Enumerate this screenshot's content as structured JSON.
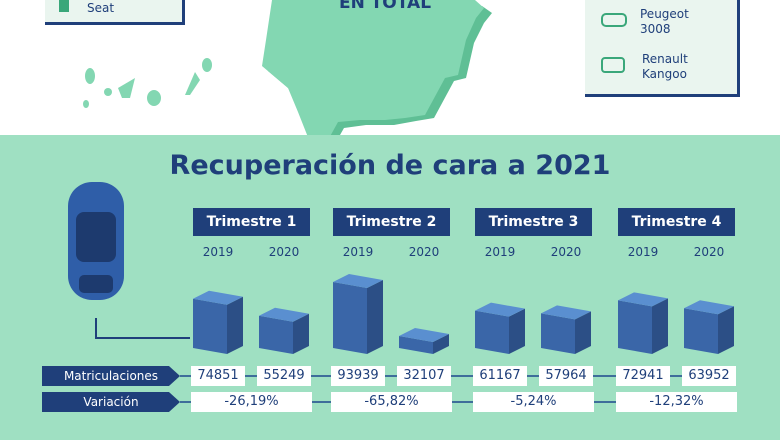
{
  "top": {
    "left_card": {
      "brand": "Seat"
    },
    "map_text": "EN TOTAL",
    "right_card": {
      "items": [
        {
          "label": "Peugeot 3008",
          "icon": "car-icon"
        },
        {
          "label": "Renault Kangoo",
          "icon": "van-icon"
        }
      ]
    }
  },
  "colors": {
    "navy": "#1f3f7a",
    "mint": "#9fe0c2",
    "map": "#83d7b2",
    "box_front": "#3a66a8",
    "box_top": "#5a8fd0",
    "box_side": "#2c4f86"
  },
  "chart_data": {
    "type": "bar",
    "title": "Recuperación de cara a 2021",
    "categories": [
      "Trimestre 1",
      "Trimestre 2",
      "Trimestre 3",
      "Trimestre 4"
    ],
    "years": [
      "2019",
      "2020"
    ],
    "series": [
      {
        "name": "2019",
        "values": [
          74851,
          93939,
          61167,
          72941
        ]
      },
      {
        "name": "2020",
        "values": [
          55249,
          32107,
          57964,
          63952
        ]
      }
    ],
    "row_labels": {
      "registrations": "Matriculaciones",
      "variation": "Variación"
    },
    "variation": [
      "-26,19%",
      "-65,82%",
      "-5,24%",
      "-12,32%"
    ]
  }
}
